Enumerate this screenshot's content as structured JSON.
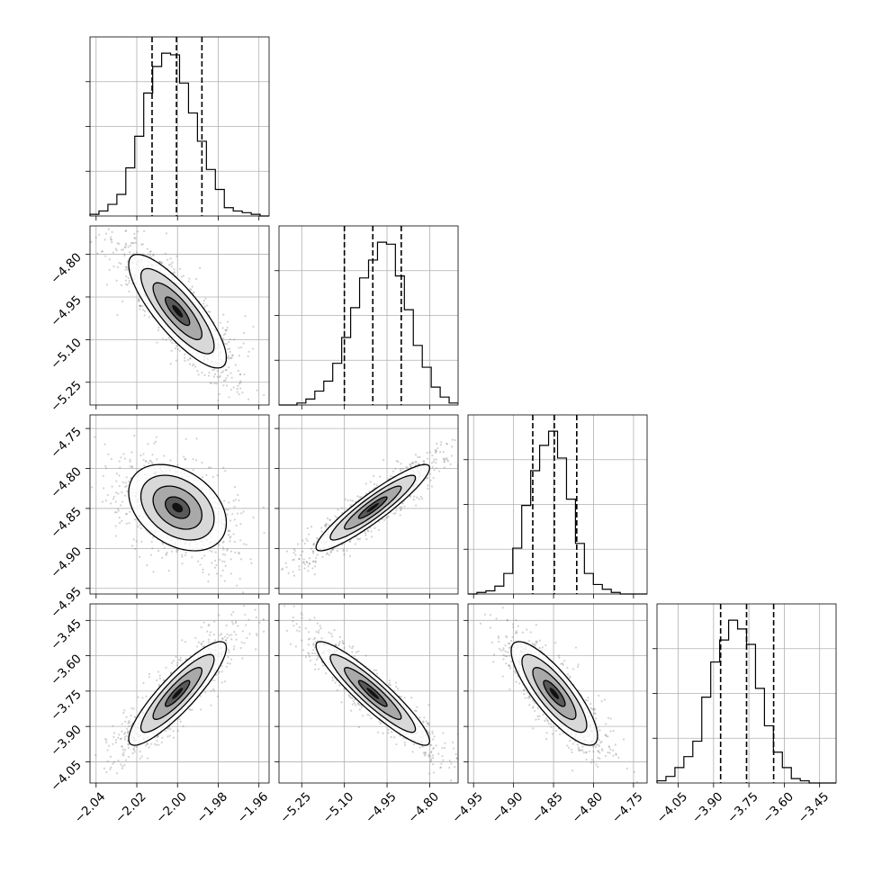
{
  "chart_data": {
    "type": "corner",
    "n_params": 4,
    "grid": true,
    "params": [
      {
        "range": [
          -2.043,
          -1.955
        ],
        "tick_values": [
          -2.04,
          -2.02,
          -2.0,
          -1.98,
          -1.96
        ],
        "tick_labels": [
          "−2.04",
          "−2.02",
          "−2.00",
          "−1.98",
          "−1.96"
        ],
        "quantiles": [
          -2.0125,
          -2.0005,
          -1.988
        ],
        "mean": -2.0,
        "std": 0.012
      },
      {
        "range": [
          -5.33,
          -4.7
        ],
        "tick_values": [
          -5.25,
          -5.1,
          -4.95,
          -4.8
        ],
        "tick_labels": [
          "−5.25",
          "−5.10",
          "−4.95",
          "−4.80"
        ],
        "quantiles": [
          -5.1,
          -5.0,
          -4.9
        ],
        "mean": -5.0,
        "std": 0.1
      },
      {
        "range": [
          -4.957,
          -4.733
        ],
        "tick_values": [
          -4.95,
          -4.9,
          -4.85,
          -4.8,
          -4.75
        ],
        "tick_labels": [
          "−4.95",
          "−4.90",
          "−4.85",
          "−4.80",
          "−4.75"
        ],
        "quantiles": [
          -4.876,
          -4.849,
          -4.821
        ],
        "mean": -4.849,
        "std": 0.027
      },
      {
        "range": [
          -4.14,
          -3.38
        ],
        "tick_values": [
          -4.05,
          -3.9,
          -3.75,
          -3.6,
          -3.45
        ],
        "tick_labels": [
          "−4.05",
          "−3.90",
          "−3.75",
          "−3.60",
          "−3.45"
        ],
        "quantiles": [
          -3.87,
          -3.76,
          -3.645
        ],
        "mean": -3.76,
        "std": 0.11
      }
    ],
    "histograms": [
      {
        "param": 0,
        "counts": [
          1,
          3,
          7,
          13,
          29,
          48,
          74,
          90,
          98,
          97,
          80,
          62,
          45,
          28,
          16,
          5,
          3,
          2,
          1,
          0
        ]
      },
      {
        "param": 1,
        "counts": [
          0,
          0,
          1,
          3,
          7,
          12,
          21,
          34,
          49,
          64,
          73,
          82,
          81,
          65,
          48,
          30,
          19,
          9,
          4,
          1
        ]
      },
      {
        "param": 2,
        "counts": [
          0,
          1,
          2,
          5,
          13,
          29,
          56,
          78,
          94,
          103,
          86,
          60,
          32,
          13,
          6,
          3,
          1,
          0,
          0,
          0
        ]
      },
      {
        "param": 3,
        "counts": [
          1,
          3,
          7,
          12,
          19,
          39,
          55,
          65,
          74,
          70,
          63,
          43,
          26,
          14,
          7,
          2,
          1,
          0,
          0,
          0
        ]
      }
    ],
    "pairs": [
      {
        "x": 0,
        "y": 1,
        "correlation": -0.82,
        "contours": [
          "0.5-sigma",
          "1-sigma",
          "1.5-sigma",
          "2-sigma"
        ]
      },
      {
        "x": 0,
        "y": 2,
        "correlation": -0.35,
        "contours": [
          "0.5-sigma",
          "1-sigma",
          "1.5-sigma",
          "2-sigma"
        ]
      },
      {
        "x": 1,
        "y": 2,
        "correlation": 0.92,
        "contours": [
          "0.5-sigma",
          "1-sigma",
          "1.5-sigma",
          "2-sigma"
        ]
      },
      {
        "x": 0,
        "y": 3,
        "correlation": 0.88,
        "contours": [
          "0.5-sigma",
          "1-sigma",
          "1.5-sigma",
          "2-sigma"
        ]
      },
      {
        "x": 1,
        "y": 3,
        "correlation": -0.92,
        "contours": [
          "0.5-sigma",
          "1-sigma",
          "1.5-sigma",
          "2-sigma"
        ]
      },
      {
        "x": 2,
        "y": 3,
        "correlation": -0.82,
        "contours": [
          "0.5-sigma",
          "1-sigma",
          "1.5-sigma",
          "2-sigma"
        ]
      }
    ],
    "colors": {
      "line": "#000000",
      "grid": "#b0b0b0",
      "points": "#7f7f7f",
      "background": "#ffffff"
    }
  }
}
